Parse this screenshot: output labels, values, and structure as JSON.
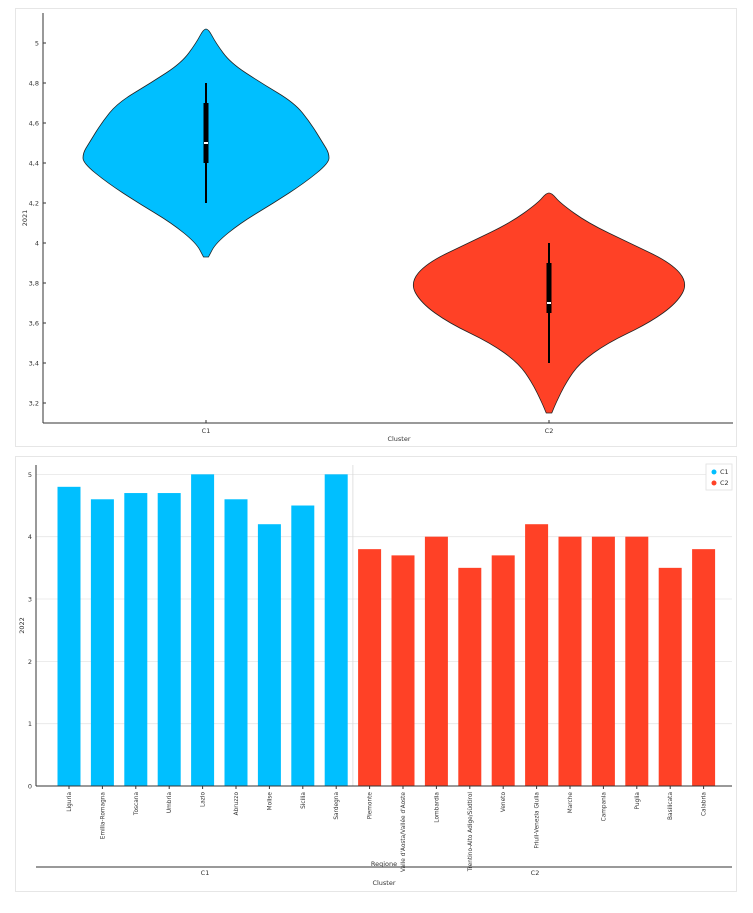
{
  "chart_data": [
    {
      "type": "violin",
      "xlabel": "Cluster",
      "ylabel": "2021",
      "categories": [
        "C1",
        "C2"
      ],
      "ylim": [
        3.1,
        5.15
      ],
      "yticks": [
        3.2,
        3.4,
        3.6,
        3.8,
        4,
        4.2,
        4.4,
        4.6,
        4.8,
        5
      ],
      "ytick_labels": [
        "3,2",
        "3,4",
        "3,6",
        "3,8",
        "4",
        "4,2",
        "4,4",
        "4,6",
        "4,8",
        "5"
      ],
      "series": [
        {
          "category": "C1",
          "color": "#00bfff",
          "ymin": 3.93,
          "ymax": 5.07,
          "whisker": [
            4.2,
            4.8
          ],
          "box": [
            4.4,
            4.7
          ],
          "median": 4.5,
          "density": [
            [
              3.93,
              0.02
            ],
            [
              4.0,
              0.08
            ],
            [
              4.1,
              0.28
            ],
            [
              4.2,
              0.55
            ],
            [
              4.3,
              0.8
            ],
            [
              4.4,
              1.0
            ],
            [
              4.45,
              1.0
            ],
            [
              4.5,
              0.95
            ],
            [
              4.6,
              0.85
            ],
            [
              4.7,
              0.72
            ],
            [
              4.8,
              0.45
            ],
            [
              4.9,
              0.2
            ],
            [
              5.0,
              0.08
            ],
            [
              5.07,
              0.02
            ]
          ]
        },
        {
          "category": "C2",
          "color": "#ff4126",
          "ymin": 3.15,
          "ymax": 4.25,
          "whisker": [
            3.4,
            4.0
          ],
          "box": [
            3.65,
            3.9
          ],
          "median": 3.7,
          "density": [
            [
              3.15,
              0.02
            ],
            [
              3.2,
              0.05
            ],
            [
              3.3,
              0.12
            ],
            [
              3.4,
              0.22
            ],
            [
              3.5,
              0.42
            ],
            [
              3.6,
              0.72
            ],
            [
              3.7,
              0.92
            ],
            [
              3.8,
              1.0
            ],
            [
              3.9,
              0.88
            ],
            [
              4.0,
              0.58
            ],
            [
              4.1,
              0.28
            ],
            [
              4.2,
              0.08
            ],
            [
              4.25,
              0.02
            ]
          ]
        }
      ]
    },
    {
      "type": "bar",
      "ylabel": "2022",
      "xlabel": "Regione",
      "xlabel2": "Cluster",
      "ylim": [
        0,
        5.15
      ],
      "yticks": [
        0,
        1,
        2,
        3,
        4,
        5
      ],
      "legend": [
        {
          "name": "C1",
          "color": "#00bfff"
        },
        {
          "name": "C2",
          "color": "#ff4126"
        }
      ],
      "groups": [
        "C1",
        "C2"
      ],
      "categories": [
        "Liguria",
        "Emilia-Romagna",
        "Toscana",
        "Umbria",
        "Lazio",
        "Abruzzo",
        "Molise",
        "Sicilia",
        "Sardegna",
        "Piemonte",
        "Valle d'Aosta/Vallée d'Aoste",
        "Lombardia",
        "Trentino-Alto Adige/Südtirol",
        "Veneto",
        "Friuli-Venezia Giulia",
        "Marche",
        "Campania",
        "Puglia",
        "Basilicata",
        "Calabria"
      ],
      "group_of": [
        "C1",
        "C1",
        "C1",
        "C1",
        "C1",
        "C1",
        "C1",
        "C1",
        "C1",
        "C2",
        "C2",
        "C2",
        "C2",
        "C2",
        "C2",
        "C2",
        "C2",
        "C2",
        "C2",
        "C2"
      ],
      "values": [
        4.8,
        4.6,
        4.7,
        4.7,
        5.0,
        4.6,
        4.2,
        4.5,
        5.0,
        3.8,
        3.7,
        4.0,
        3.5,
        3.7,
        4.2,
        4.0,
        4.0,
        4.0,
        3.5,
        3.8
      ]
    }
  ]
}
